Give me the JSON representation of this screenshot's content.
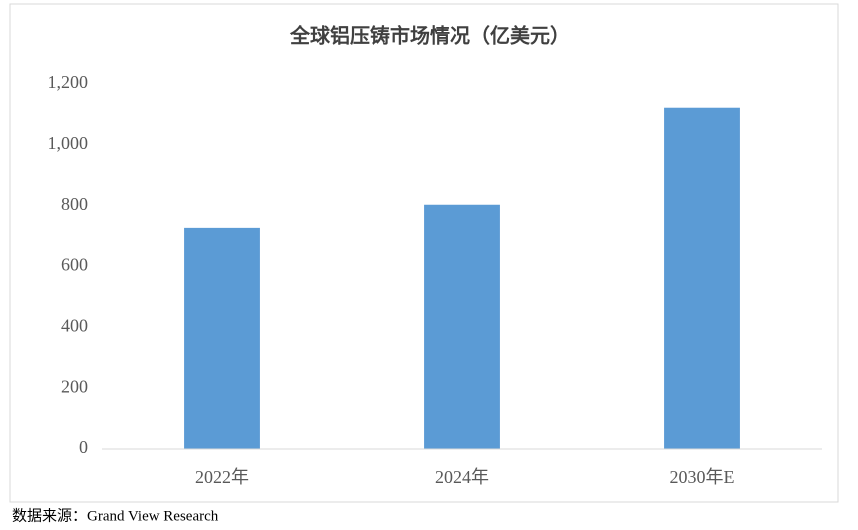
{
  "chart_data": {
    "type": "bar",
    "title": "全球铝压铸市场情况（亿美元）",
    "categories": [
      "2022年",
      "2024年",
      "2030年E"
    ],
    "values": [
      727,
      803,
      1122
    ],
    "color": "#5b9bd5",
    "ylim": [
      0,
      1200
    ],
    "yticks": [
      0,
      200,
      400,
      600,
      800,
      {
        "value": 1000,
        "label": "1,000"
      },
      {
        "value": 1200,
        "label": "1,200"
      }
    ],
    "grid": false,
    "source": "数据来源：Grand View Research"
  }
}
